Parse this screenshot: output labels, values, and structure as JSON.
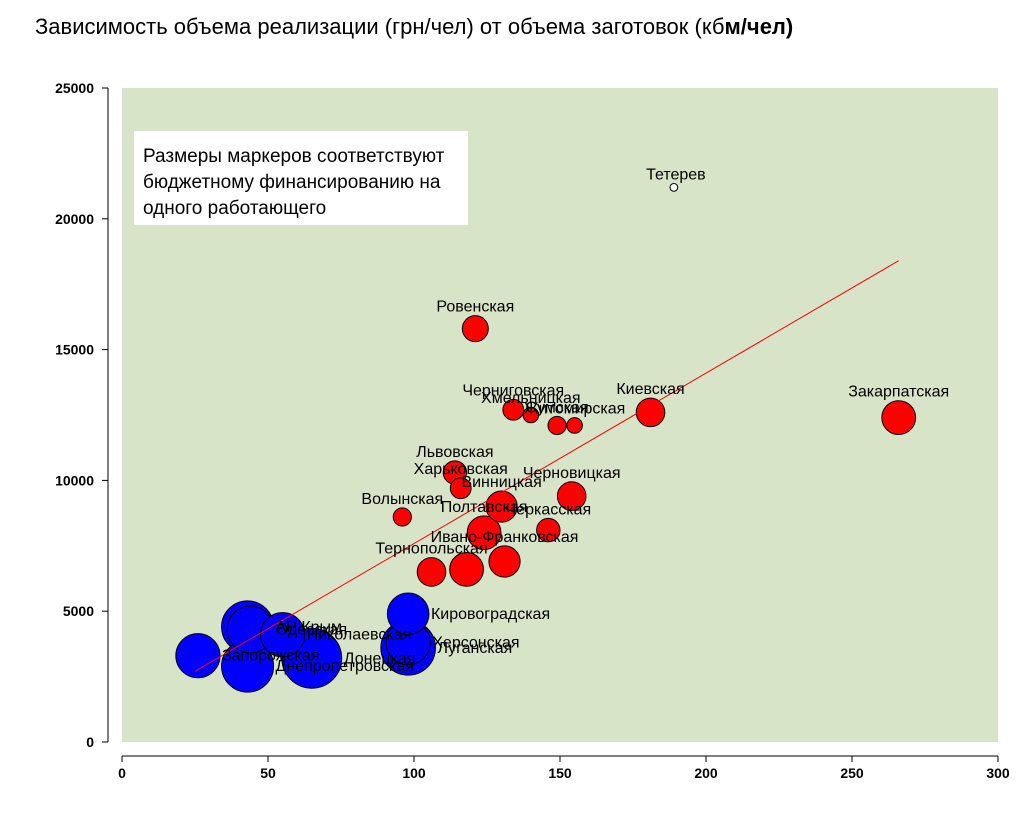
{
  "title_main": "Зависимость объема реализации (грн/чел) от объема заготовок (кб",
  "title_tail": "м/чел)",
  "note_lines": [
    "Размеры маркеров соответствуют",
    "бюджетному финансированию на",
    "одного работающего"
  ],
  "colors": {
    "plot_bg": "#d8e4c8",
    "red": "#ff0000",
    "blue": "#0000ff",
    "trend": "#ff0000"
  },
  "chart_data": {
    "type": "scatter",
    "title": "Зависимость объема реализации (грн/чел) от объема заготовок (кбм/чел)",
    "xlim": [
      0,
      300
    ],
    "ylim": [
      0,
      25000
    ],
    "x_ticks": [
      "0",
      "50",
      "100",
      "150",
      "200",
      "250",
      "300"
    ],
    "y_ticks": [
      "0",
      "5000",
      "10000",
      "15000",
      "20000",
      "25000"
    ],
    "grid": false,
    "trendline": {
      "x": [
        25,
        266
      ],
      "y": [
        2700,
        18400
      ]
    },
    "points": [
      {
        "label": "Тетерев",
        "x": 189,
        "y": 21200,
        "size": 0.3,
        "color": "red"
      },
      {
        "label": "Ровенская",
        "x": 121,
        "y": 15800,
        "size": 1,
        "color": "red"
      },
      {
        "label": "Черниговская",
        "x": 134,
        "y": 12700,
        "size": 0.8,
        "color": "red"
      },
      {
        "label": "Хмельницкая",
        "x": 140,
        "y": 12500,
        "size": 0.6,
        "color": "red"
      },
      {
        "label": "Киевская",
        "x": 181,
        "y": 12600,
        "size": 1.1,
        "color": "red"
      },
      {
        "label": "Сумская",
        "x": 149,
        "y": 12100,
        "size": 0.7,
        "color": "red"
      },
      {
        "label": "Житомирская",
        "x": 155,
        "y": 12100,
        "size": 0.6,
        "color": "red"
      },
      {
        "label": "Закарпатская",
        "x": 266,
        "y": 12400,
        "size": 1.3,
        "color": "red"
      },
      {
        "label": "Львовская",
        "x": 114,
        "y": 10300,
        "size": 0.9,
        "color": "red"
      },
      {
        "label": "Харьковская",
        "x": 116,
        "y": 9700,
        "size": 0.8,
        "color": "red"
      },
      {
        "label": "Винницкая",
        "x": 130,
        "y": 9000,
        "size": 1.2,
        "color": "red"
      },
      {
        "label": "Черновицкая",
        "x": 154,
        "y": 9400,
        "size": 1.1,
        "color": "red"
      },
      {
        "label": "Волынская",
        "x": 96,
        "y": 8600,
        "size": 0.7,
        "color": "red"
      },
      {
        "label": "Полтавская",
        "x": 124,
        "y": 8000,
        "size": 1.3,
        "color": "red"
      },
      {
        "label": "Черкасская",
        "x": 146,
        "y": 8100,
        "size": 0.9,
        "color": "red"
      },
      {
        "label": "Тернопольская",
        "x": 106,
        "y": 6500,
        "size": 1.1,
        "color": "red"
      },
      {
        "label": "",
        "x": 118,
        "y": 6600,
        "size": 1.3,
        "color": "red"
      },
      {
        "label": "Ивано-Франковская",
        "x": 131,
        "y": 6900,
        "size": 1.2,
        "color": "red"
      },
      {
        "label": "Кировоградская",
        "x": 98,
        "y": 4900,
        "size": 1.6,
        "color": "blue"
      },
      {
        "label": "Луганская",
        "x": 98,
        "y": 3600,
        "size": 2.1,
        "color": "blue"
      },
      {
        "label": "Херсонская",
        "x": 98,
        "y": 3800,
        "size": 1.7,
        "color": "blue"
      },
      {
        "label": "АР Крым",
        "x": 43,
        "y": 4400,
        "size": 2.0,
        "color": "blue"
      },
      {
        "label": "Одесская",
        "x": 44,
        "y": 4300,
        "size": 1.8,
        "color": "blue"
      },
      {
        "label": "Николаевская",
        "x": 55,
        "y": 4100,
        "size": 1.7,
        "color": "blue"
      },
      {
        "label": "Запорожская",
        "x": 26,
        "y": 3300,
        "size": 1.7,
        "color": "blue"
      },
      {
        "label": "Донецкая",
        "x": 65,
        "y": 3200,
        "size": 2.3,
        "color": "blue"
      },
      {
        "label": "Днепропетровская",
        "x": 43,
        "y": 2900,
        "size": 2.0,
        "color": "blue"
      }
    ]
  }
}
